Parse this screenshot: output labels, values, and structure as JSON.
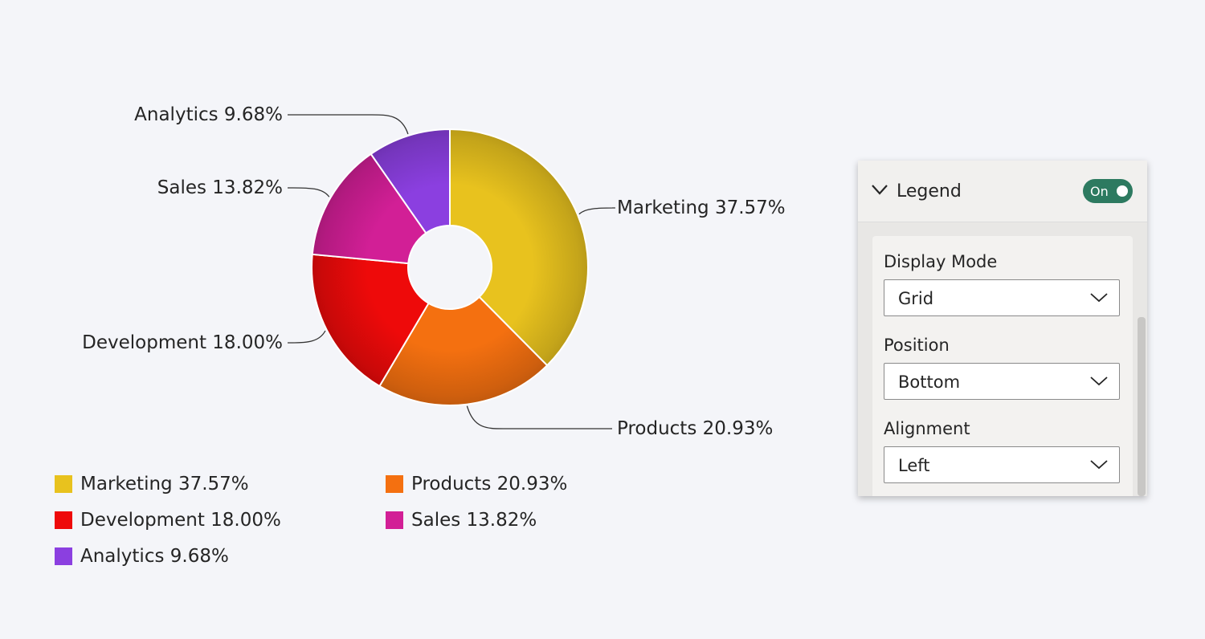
{
  "chart_data": {
    "type": "donut",
    "categories": [
      "Marketing",
      "Products",
      "Development",
      "Sales",
      "Analytics"
    ],
    "values": [
      37.57,
      20.93,
      18.0,
      13.82,
      9.68
    ],
    "value_labels": [
      "37.57%",
      "20.93%",
      "18.00%",
      "13.82%",
      "9.68%"
    ],
    "colors": [
      "#e8c21e",
      "#f47010",
      "#ee0a0a",
      "#d21f96",
      "#8b3fe0"
    ],
    "legend": "bottom"
  },
  "panel": {
    "title": "Legend",
    "toggle": "On",
    "fields": [
      {
        "label": "Display Mode",
        "value": "Grid"
      },
      {
        "label": "Position",
        "value": "Bottom"
      },
      {
        "label": "Alignment",
        "value": "Left"
      }
    ]
  }
}
